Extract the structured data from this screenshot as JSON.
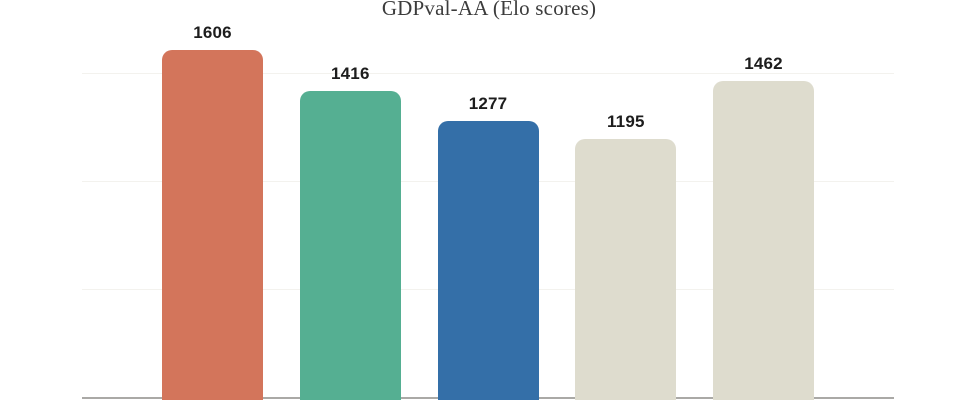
{
  "chart_data": {
    "type": "bar",
    "title": "GDPval-AA (Elo scores)",
    "values": [
      1606,
      1416,
      1277,
      1195,
      1462
    ],
    "value_labels": [
      "1606",
      "1416",
      "1277",
      "1195",
      "1462"
    ],
    "bar_colors": [
      "#d3755b",
      "#55af92",
      "#346fa8",
      "#dedcce",
      "#dedcce"
    ],
    "xlabel": "",
    "ylabel": "",
    "ylim": [
      0,
      1835
    ],
    "gridline_values": [
      500,
      1000,
      1500
    ],
    "grid": "horizontal",
    "legend_position": "none",
    "colors": {
      "background": "#ffffff",
      "gridline": "#f3f2ee",
      "axis_line": "#aaa9a6",
      "title_text": "#3c3c3c",
      "value_label_text": "#1d1d1d"
    }
  }
}
